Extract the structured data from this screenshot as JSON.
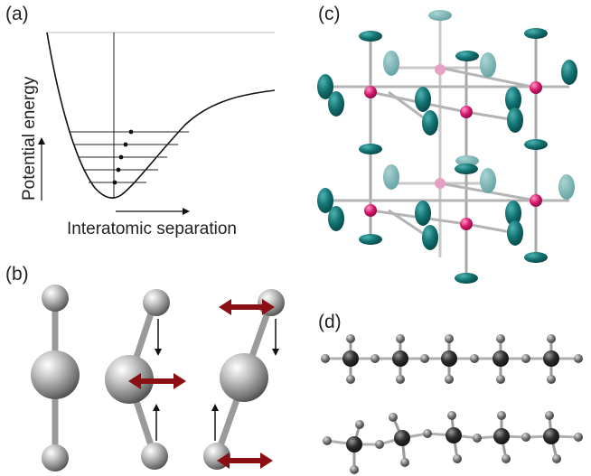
{
  "panels": {
    "a": {
      "label": "(a)",
      "xlabel": "Interatomic separation",
      "ylabel": "Potential energy",
      "energy_level_count": 5
    },
    "b": {
      "label": "(b)"
    },
    "c": {
      "label": "(c)"
    },
    "d": {
      "label": "(d)"
    }
  },
  "colors": {
    "line": "#222222",
    "arrow_red": "#8b0f12",
    "teal": "#0f6b6b",
    "magenta": "#d6186e",
    "grey_atom": "#8a8a8a",
    "dark_atom": "#2b2b2b"
  }
}
